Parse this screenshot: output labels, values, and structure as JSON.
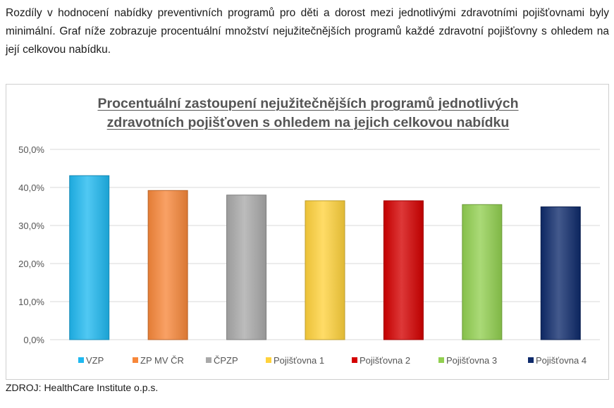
{
  "intro_text": "Rozdíly v hodnocení nabídky preventivních programů pro děti a dorost mezi jednotlivými zdravotními pojišťovnami byly minimální. Graf níže zobrazuje procentuální množství nejužitečnějších programů každé zdravotní pojišťovny s ohledem na její celkovou nabídku.",
  "source_text": "ZDROJ: HealthCare Institute o.p.s.",
  "chart_data": {
    "type": "bar",
    "title_lines": [
      "Procentuální zastoupení nejužitečnějších programů jednotlivých",
      "zdravotních pojišťoven s ohledem na jejich celkovou nabídku"
    ],
    "xlabel": "",
    "ylabel": "",
    "ylim": [
      0,
      50
    ],
    "yticks": [
      "0,0%",
      "10,0%",
      "20,0%",
      "30,0%",
      "40,0%",
      "50,0%"
    ],
    "grid": true,
    "legend_position": "bottom",
    "categories": [
      "VZP",
      "ZP MV ČR",
      "ČPZP",
      "Pojišťovna 1",
      "Pojišťovna 2",
      "Pojišťovna 3",
      "Pojišťovna 4"
    ],
    "values": [
      43.1,
      39.2,
      38.0,
      36.5,
      36.5,
      35.5,
      34.9
    ],
    "colors": [
      "#1fb8f0",
      "#f7873a",
      "#a9a9a9",
      "#ffd23c",
      "#d40000",
      "#92d050",
      "#0e2a6b"
    ]
  }
}
